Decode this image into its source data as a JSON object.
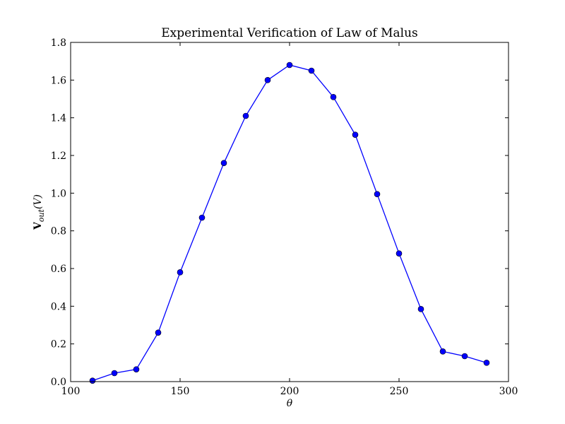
{
  "chart_data": {
    "type": "line",
    "title": "Experimental Verification of Law of Malus",
    "xlabel": "θ",
    "ylabel": {
      "main": "V",
      "sub": "out",
      "suffix": "(V)"
    },
    "xlim": [
      100,
      300
    ],
    "ylim": [
      0,
      1.8
    ],
    "xticks": [
      100,
      150,
      200,
      250,
      300
    ],
    "yticks": [
      0.0,
      0.2,
      0.4,
      0.6,
      0.8,
      1.0,
      1.2,
      1.4,
      1.6,
      1.8
    ],
    "xtick_labels": [
      "100",
      "150",
      "200",
      "250",
      "300"
    ],
    "ytick_labels": [
      "0.0",
      "0.2",
      "0.4",
      "0.6",
      "0.8",
      "1.0",
      "1.2",
      "1.4",
      "1.6",
      "1.8"
    ],
    "grid": false,
    "series": [
      {
        "color": "#0000ff",
        "marker": "circle",
        "x": [
          110,
          120,
          130,
          140,
          150,
          160,
          170,
          180,
          190,
          200,
          210,
          220,
          230,
          240,
          250,
          260,
          270,
          280,
          290
        ],
        "y": [
          0.005,
          0.045,
          0.065,
          0.26,
          0.58,
          0.87,
          1.16,
          1.41,
          1.6,
          1.68,
          1.65,
          1.51,
          1.31,
          0.995,
          0.68,
          0.385,
          0.16,
          0.135,
          0.1
        ]
      }
    ]
  }
}
